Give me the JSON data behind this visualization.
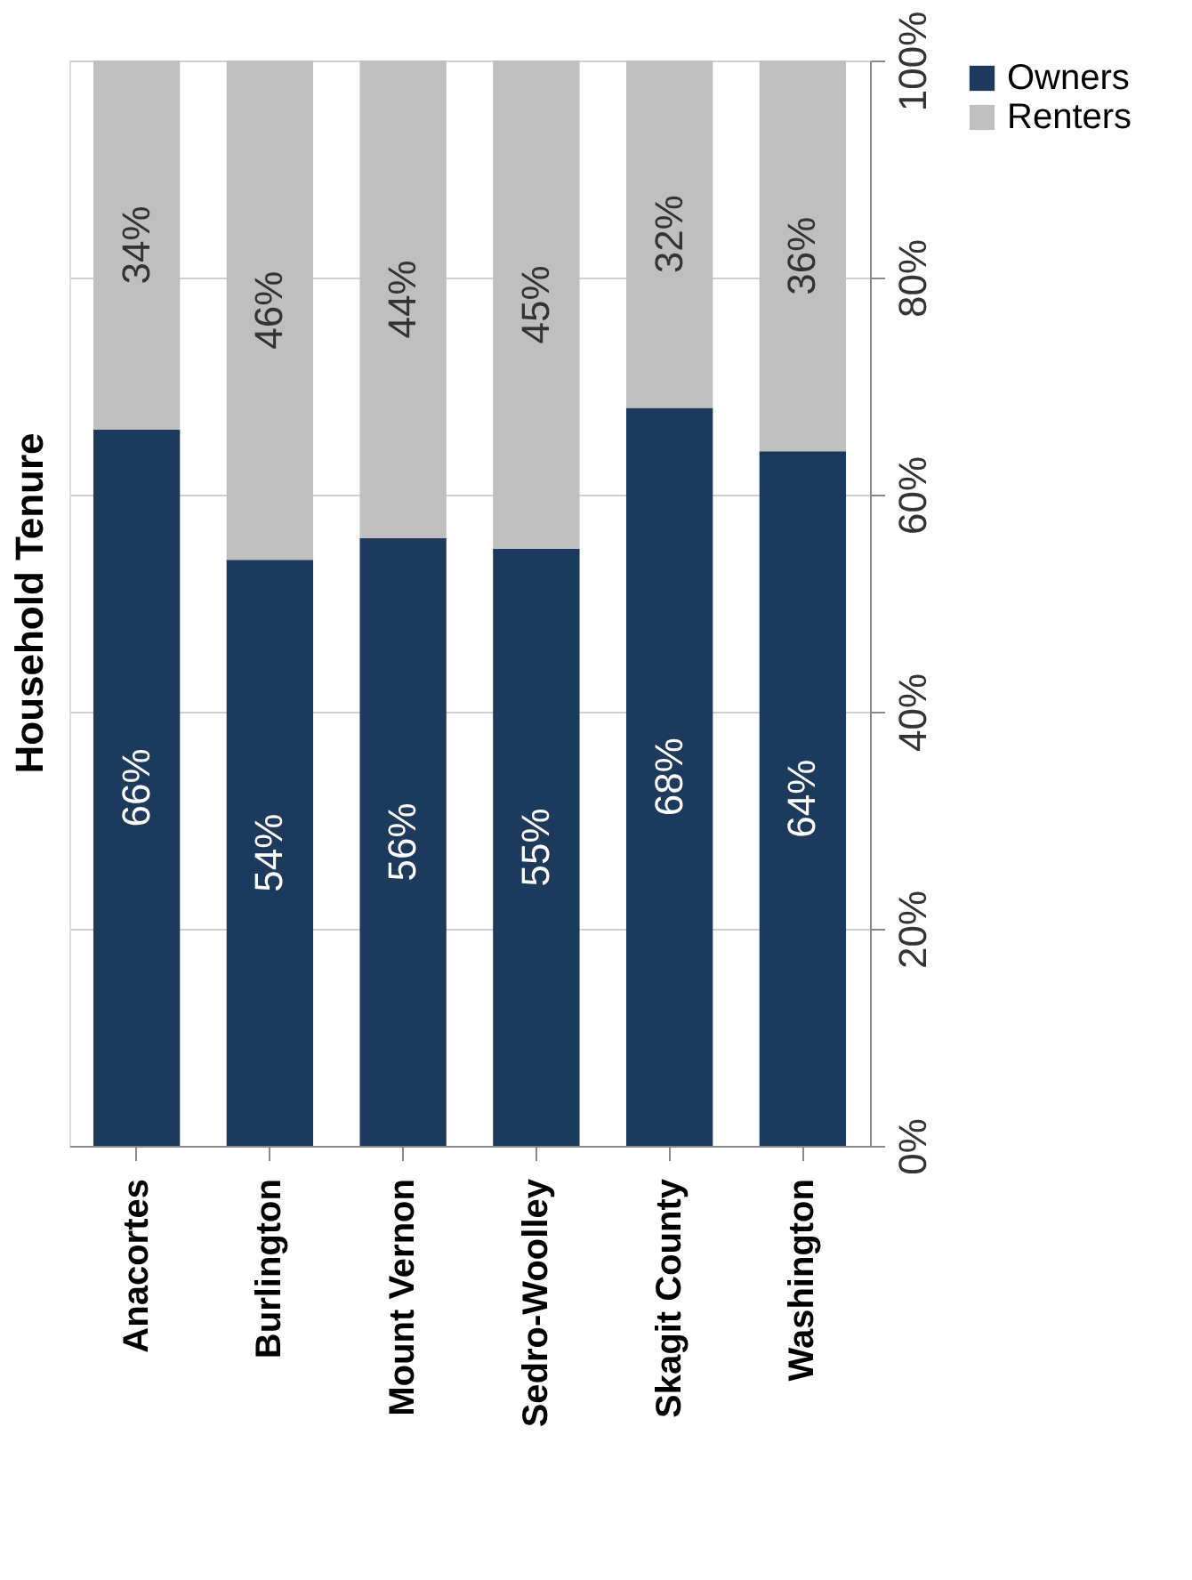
{
  "chart_data": {
    "type": "bar",
    "title": "Household Tenure",
    "stacked": true,
    "categories": [
      "Anacortes",
      "Burlington",
      "Mount Vernon",
      "Sedro-Woolley",
      "Skagit County",
      "Washington"
    ],
    "series": [
      {
        "name": "Owners",
        "color": "#1c3a5b",
        "values": [
          66,
          54,
          56,
          55,
          68,
          64
        ],
        "value_labels": [
          "66%",
          "54%",
          "56%",
          "55%",
          "68%",
          "64%"
        ]
      },
      {
        "name": "Renters",
        "color": "#bfbfbf",
        "values": [
          34,
          46,
          44,
          45,
          32,
          36
        ],
        "value_labels": [
          "34%",
          "46%",
          "44%",
          "45%",
          "32%",
          "36%"
        ]
      }
    ],
    "ylim": [
      0,
      100
    ],
    "yticks": [
      {
        "value": 0,
        "label": "0%"
      },
      {
        "value": 20,
        "label": "20%"
      },
      {
        "value": 40,
        "label": "40%"
      },
      {
        "value": 60,
        "label": "60%"
      },
      {
        "value": 80,
        "label": "80%"
      },
      {
        "value": 100,
        "label": "100%"
      }
    ],
    "grid": "y",
    "legend": "right"
  }
}
